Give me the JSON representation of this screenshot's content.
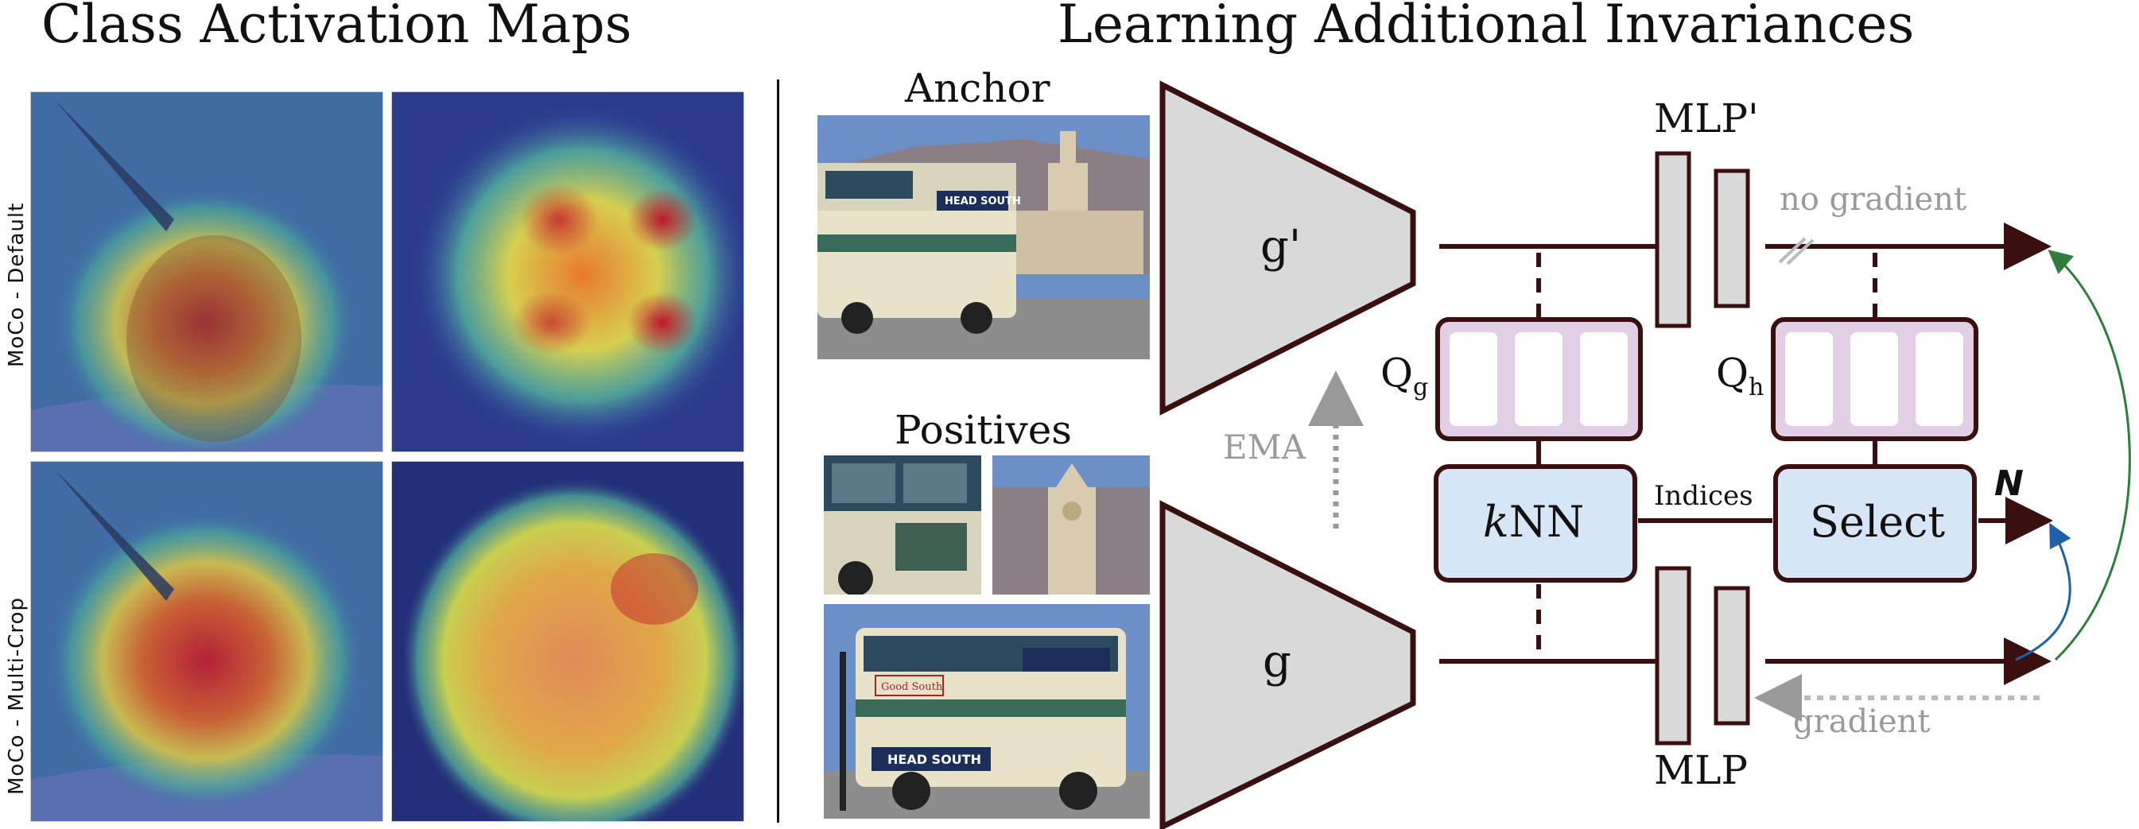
{
  "left_panel": {
    "title": "Class Activation Maps",
    "row_labels": [
      "MoCo - Default",
      "MoCo - Multi-Crop"
    ]
  },
  "right_panel": {
    "title": "Learning Additional Invariances",
    "anchor_label": "Anchor",
    "positives_label": "Positives",
    "encoder_momentum": "g'",
    "encoder": "g",
    "ema_label": "EMA",
    "mlp_momentum": "MLP'",
    "mlp": "MLP",
    "queue_g": {
      "main": "Q",
      "sub": "g"
    },
    "queue_h": {
      "main": "Q",
      "sub": "h"
    },
    "knn": {
      "italic": "k",
      "rest": "NN"
    },
    "select": "Select",
    "indices": "Indices",
    "n_label": "N",
    "no_gradient": "no gradient",
    "gradient": "gradient",
    "photo_text": {
      "bus_sign": "HEAD SOUTH",
      "bus_ad": "Good South"
    }
  },
  "colors": {
    "dark_outline": "#3a0f0f",
    "encoder_fill": "#d9d9d9",
    "queue_fill": "#e2cfe6",
    "box_fill": "#d6e6f7",
    "gray_text": "#9a9a9a",
    "green_arrow": "#2f7d3a",
    "blue_arrow": "#2060a8"
  }
}
